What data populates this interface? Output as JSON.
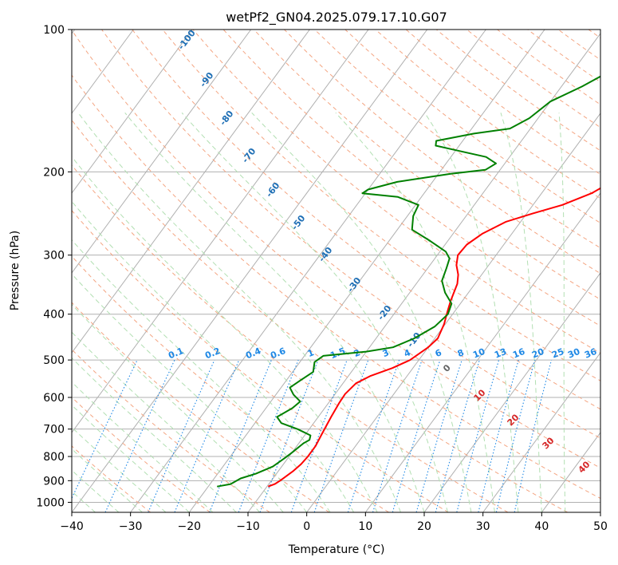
{
  "chart_data": {
    "type": "line",
    "title": "wetPf2_GN04.2025.079.17.10.G07",
    "xlabel": "Temperature (°C)",
    "ylabel": "Pressure (hPa)",
    "xlim": [
      -40,
      50
    ],
    "ylim": [
      1050,
      100
    ],
    "y_scale": "log",
    "grid": true,
    "x_ticks": [
      "−40",
      "−30",
      "−20",
      "−10",
      "0",
      "10",
      "20",
      "30",
      "40",
      "50"
    ],
    "y_ticks": [
      "100",
      "200",
      "300",
      "400",
      "500",
      "600",
      "700",
      "800",
      "900",
      "1000"
    ],
    "series": [
      {
        "color": "#ff0000",
        "points": [
          [
            -9.8,
            926
          ],
          [
            -9.0,
            915
          ],
          [
            -8.5,
            900
          ],
          [
            -7.5,
            860
          ],
          [
            -7.0,
            830
          ],
          [
            -6.8,
            800
          ],
          [
            -6.8,
            760
          ],
          [
            -7.2,
            720
          ],
          [
            -7.8,
            660
          ],
          [
            -8.2,
            615
          ],
          [
            -8.3,
            590
          ],
          [
            -7.8,
            560
          ],
          [
            -6.2,
            540
          ],
          [
            -3.5,
            520
          ],
          [
            -1.5,
            500
          ],
          [
            0.0,
            470
          ],
          [
            0.5,
            450
          ],
          [
            -0.2,
            420
          ],
          [
            -1.2,
            395
          ],
          [
            -2.0,
            375
          ],
          [
            -2.5,
            360
          ],
          [
            -3.0,
            345
          ],
          [
            -4.0,
            330
          ],
          [
            -5.5,
            315
          ],
          [
            -6.5,
            300
          ],
          [
            -6.3,
            285
          ],
          [
            -5.0,
            270
          ],
          [
            -2.5,
            255
          ],
          [
            1.0,
            245
          ],
          [
            5.0,
            235
          ],
          [
            8.5,
            222
          ],
          [
            10.5,
            210
          ],
          [
            12.5,
            198
          ],
          [
            15.0,
            185
          ],
          [
            18.0,
            170
          ],
          [
            20.5,
            158
          ],
          [
            21.5,
            150
          ],
          [
            22.5,
            142
          ],
          [
            24.0,
            133
          ],
          [
            25.5,
            125
          ],
          [
            27.0,
            117
          ],
          [
            28.5,
            110
          ],
          [
            31.0,
            104
          ],
          [
            33.5,
            100
          ]
        ]
      },
      {
        "color": "#008000",
        "points": [
          [
            -18.5,
            926
          ],
          [
            -16.5,
            915
          ],
          [
            -15.5,
            890
          ],
          [
            -13.5,
            870
          ],
          [
            -11.5,
            840
          ],
          [
            -10.5,
            805
          ],
          [
            -10.0,
            785
          ],
          [
            -9.2,
            750
          ],
          [
            -8.6,
            738
          ],
          [
            -9.0,
            722
          ],
          [
            -12.0,
            700
          ],
          [
            -15.5,
            680
          ],
          [
            -17.0,
            660
          ],
          [
            -15.5,
            632
          ],
          [
            -15.0,
            612
          ],
          [
            -17.0,
            592
          ],
          [
            -18.5,
            572
          ],
          [
            -17.5,
            550
          ],
          [
            -16.5,
            530
          ],
          [
            -17.5,
            505
          ],
          [
            -16.8,
            490
          ],
          [
            -10.0,
            480
          ],
          [
            -6.0,
            470
          ],
          [
            -3.5,
            450
          ],
          [
            -1.5,
            425
          ],
          [
            -0.8,
            400
          ],
          [
            -1.5,
            380
          ],
          [
            -4.0,
            360
          ],
          [
            -6.0,
            340
          ],
          [
            -6.8,
            320
          ],
          [
            -7.5,
            305
          ],
          [
            -9.0,
            295
          ],
          [
            -13.0,
            280
          ],
          [
            -17.5,
            265
          ],
          [
            -19.0,
            248
          ],
          [
            -19.5,
            235
          ],
          [
            -24.0,
            226
          ],
          [
            -30.5,
            222
          ],
          [
            -30.0,
            218
          ],
          [
            -26.0,
            210
          ],
          [
            -18.0,
            202
          ],
          [
            -12.5,
            198
          ],
          [
            -11.5,
            192
          ],
          [
            -14.0,
            186
          ],
          [
            -20.0,
            180
          ],
          [
            -24.0,
            176
          ],
          [
            -24.5,
            172
          ],
          [
            -19.0,
            166
          ],
          [
            -13.5,
            162
          ],
          [
            -11.5,
            154
          ],
          [
            -10.0,
            142
          ],
          [
            -6.5,
            132
          ],
          [
            -3.5,
            122
          ],
          [
            -1.5,
            112
          ],
          [
            -1.0,
            104
          ],
          [
            -1.0,
            100
          ]
        ]
      }
    ],
    "annotations": {
      "dry_adiabats": [
        "-100",
        "-90",
        "-80",
        "-70",
        "-60",
        "-50",
        "-40",
        "-30",
        "-20",
        "-10"
      ],
      "mixing_ratios": [
        "0.1",
        "0.2",
        "0.4",
        "0.6",
        "1",
        "1.5",
        "2",
        "3",
        "4",
        "6",
        "8",
        "10",
        "13",
        "16",
        "20",
        "25",
        "30",
        "36"
      ],
      "moist_adiabats": [
        "0",
        "10",
        "20",
        "30",
        "40"
      ]
    },
    "colors": {
      "temperature": "#ff0000",
      "dewpoint": "#008000",
      "isotherm": "#b0b0b0",
      "dry_adiabat": "#f4a582",
      "moist_adiabat": "#b2dfb2",
      "mixing_ratio": "#1e88e5",
      "dry_label": "#1f6fb5",
      "mixing_label": "#1e88e5",
      "moist_label": "#d62728"
    }
  }
}
